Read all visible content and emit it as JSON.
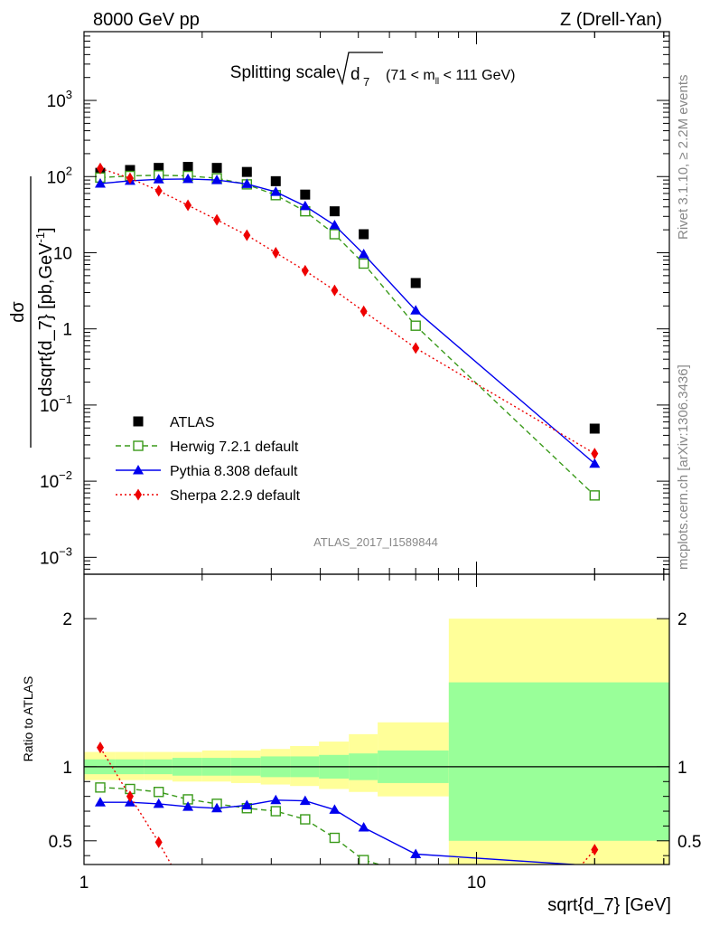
{
  "header": {
    "left": "8000 GeV pp",
    "right": "Z (Drell-Yan)"
  },
  "plot_title": {
    "main": "Splitting scale",
    "sqrt_arg": "d",
    "sqrt_sub": "7",
    "range_pre": "(71 < m",
    "range_sub": "ll",
    "range_post": " < 111 GeV)"
  },
  "side_text": {
    "rivet": "Rivet 3.1.10, ≥ 2.2M events",
    "mcplots": "mcplots.cern.ch [arXiv:1306.3436]"
  },
  "watermark": "ATLAS_2017_I1589844",
  "colors": {
    "atlas": "#000000",
    "herwig": "#3a9a1a",
    "pythia": "#0000ee",
    "sherpa": "#ee0000",
    "band_green": "#99ff99",
    "band_yellow": "#ffff99"
  },
  "chart_data": [
    {
      "type": "scatter",
      "title": "Splitting scale sqrt(d_7) (71 < m_ll < 111 GeV)",
      "log_x": true,
      "log_y": true,
      "xlim": [
        1,
        31
      ],
      "ylim": [
        0.0006,
        8000
      ],
      "ylabel": "dσ/dsqrt{d_7} [pb,GeV^-1]",
      "xlabel": "",
      "y_ticks": [
        {
          "value": 0.001,
          "base": "10",
          "exp": "−3"
        },
        {
          "value": 0.01,
          "base": "10",
          "exp": "−2"
        },
        {
          "value": 0.1,
          "base": "10",
          "exp": "−1"
        },
        {
          "value": 1,
          "base": "1",
          "exp": ""
        },
        {
          "value": 10,
          "base": "10",
          "exp": ""
        },
        {
          "value": 100,
          "base": "10",
          "exp": "2"
        },
        {
          "value": 1000,
          "base": "10",
          "exp": "3"
        }
      ],
      "legend_position": "lower-left",
      "series": [
        {
          "name": "ATLAS",
          "style": "square",
          "x": [
            1.1,
            1.31,
            1.55,
            1.84,
            2.18,
            2.6,
            3.08,
            3.66,
            4.35,
            5.16,
            7.0,
            20.0
          ],
          "y": [
            112,
            122,
            130,
            134,
            130,
            115,
            87,
            58,
            35,
            17.5,
            4.0,
            0.049
          ]
        },
        {
          "name": "Herwig 7.2.1 default",
          "style": "open-square-dashed",
          "x": [
            1.1,
            1.31,
            1.55,
            1.84,
            2.18,
            2.6,
            3.08,
            3.66,
            4.35,
            5.16,
            7.0,
            20.0
          ],
          "y": [
            97,
            102,
            104,
            102,
            95,
            79,
            57,
            35,
            17.5,
            7.2,
            1.1,
            0.0065
          ]
        },
        {
          "name": "Pythia 8.308 default",
          "style": "triangle-solid",
          "x": [
            1.1,
            1.31,
            1.55,
            1.84,
            2.18,
            2.6,
            3.08,
            3.66,
            4.35,
            5.16,
            7.0,
            20.0
          ],
          "y": [
            81,
            88,
            92,
            93,
            90,
            80,
            63,
            41,
            23,
            9.6,
            1.75,
            0.017
          ]
        },
        {
          "name": "Sherpa 2.2.9 default",
          "style": "diamond-dotted",
          "x": [
            1.1,
            1.31,
            1.55,
            1.84,
            2.18,
            2.6,
            3.08,
            3.66,
            4.35,
            5.16,
            7.0,
            20.0
          ],
          "y": [
            128,
            95,
            65,
            42,
            27,
            17,
            10,
            5.8,
            3.2,
            1.7,
            0.56,
            0.023
          ]
        }
      ]
    },
    {
      "type": "line",
      "log_x": true,
      "xlim": [
        1,
        31
      ],
      "ylim": [
        0.34,
        2.3
      ],
      "xlabel": "sqrt{d_7} [GeV]",
      "ylabel": "Ratio to ATLAS",
      "x_ticks": [
        "1",
        "10"
      ],
      "y_ticks": [
        "0.5",
        "1",
        "2"
      ],
      "bands": {
        "edges": [
          1,
          1.2,
          1.42,
          1.68,
          2.0,
          2.37,
          2.82,
          3.35,
          3.97,
          4.73,
          5.6,
          8.5,
          31
        ],
        "green_lo": [
          0.95,
          0.95,
          0.95,
          0.94,
          0.94,
          0.94,
          0.93,
          0.93,
          0.92,
          0.91,
          0.89,
          0.5
        ],
        "green_hi": [
          1.05,
          1.05,
          1.05,
          1.06,
          1.06,
          1.06,
          1.07,
          1.07,
          1.08,
          1.09,
          1.11,
          1.57
        ],
        "yellow_lo": [
          0.91,
          0.91,
          0.91,
          0.9,
          0.9,
          0.89,
          0.88,
          0.87,
          0.85,
          0.83,
          0.8,
          0.2
        ],
        "yellow_hi": [
          1.1,
          1.1,
          1.1,
          1.1,
          1.11,
          1.11,
          1.12,
          1.14,
          1.17,
          1.22,
          1.3,
          2.0
        ]
      },
      "series": [
        {
          "name": "Herwig 7.2.1 default",
          "style": "open-square-dashed",
          "x": [
            1.1,
            1.31,
            1.55,
            1.84,
            2.18,
            2.6,
            3.08,
            3.66,
            4.35,
            5.16,
            7.0
          ],
          "y": [
            0.86,
            0.85,
            0.83,
            0.78,
            0.75,
            0.72,
            0.7,
            0.645,
            0.52,
            0.37,
            0.27
          ]
        },
        {
          "name": "Pythia 8.308 default",
          "style": "triangle-solid",
          "x": [
            1.1,
            1.31,
            1.55,
            1.84,
            2.18,
            2.6,
            3.08,
            3.66,
            4.35,
            5.16,
            7.0,
            20.0
          ],
          "y": [
            0.76,
            0.76,
            0.75,
            0.73,
            0.72,
            0.74,
            0.775,
            0.77,
            0.71,
            0.59,
            0.41,
            0.33
          ]
        },
        {
          "name": "Sherpa 2.2.9 default",
          "style": "diamond-dotted",
          "x": [
            1.1,
            1.31,
            1.55,
            1.7,
            18.0,
            20.0
          ],
          "y": [
            1.13,
            0.8,
            0.49,
            0.3,
            0.3,
            0.44
          ]
        }
      ]
    }
  ]
}
